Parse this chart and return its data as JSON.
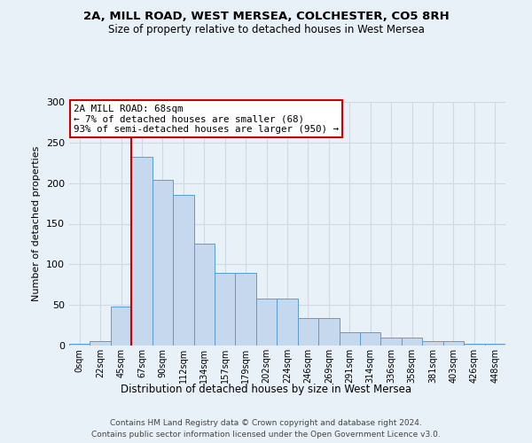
{
  "title_line1": "2A, MILL ROAD, WEST MERSEA, COLCHESTER, CO5 8RH",
  "title_line2": "Size of property relative to detached houses in West Mersea",
  "xlabel": "Distribution of detached houses by size in West Mersea",
  "ylabel": "Number of detached properties",
  "footer_line1": "Contains HM Land Registry data © Crown copyright and database right 2024.",
  "footer_line2": "Contains public sector information licensed under the Open Government Licence v3.0.",
  "annotation_title": "2A MILL ROAD: 68sqm",
  "annotation_line1": "← 7% of detached houses are smaller (68)",
  "annotation_line2": "93% of semi-detached houses are larger (950) →",
  "bar_labels": [
    "0sqm",
    "22sqm",
    "45sqm",
    "67sqm",
    "90sqm",
    "112sqm",
    "134sqm",
    "157sqm",
    "179sqm",
    "202sqm",
    "224sqm",
    "246sqm",
    "269sqm",
    "291sqm",
    "314sqm",
    "336sqm",
    "358sqm",
    "381sqm",
    "403sqm",
    "426sqm",
    "448sqm"
  ],
  "bar_values": [
    2,
    5,
    48,
    232,
    204,
    186,
    126,
    90,
    90,
    58,
    58,
    34,
    34,
    16,
    16,
    10,
    10,
    6,
    6,
    2,
    2
  ],
  "bar_color": "#c5d8ed",
  "bar_edge_color": "#5b9bd5",
  "vline_color": "#cc0000",
  "annotation_box_color": "#ffffff",
  "annotation_box_edge_color": "#cc0000",
  "grid_color": "#d0d8e4",
  "background_color": "#e8f0f8",
  "ylim": [
    0,
    300
  ],
  "yticks": [
    0,
    50,
    100,
    150,
    200,
    250,
    300
  ]
}
